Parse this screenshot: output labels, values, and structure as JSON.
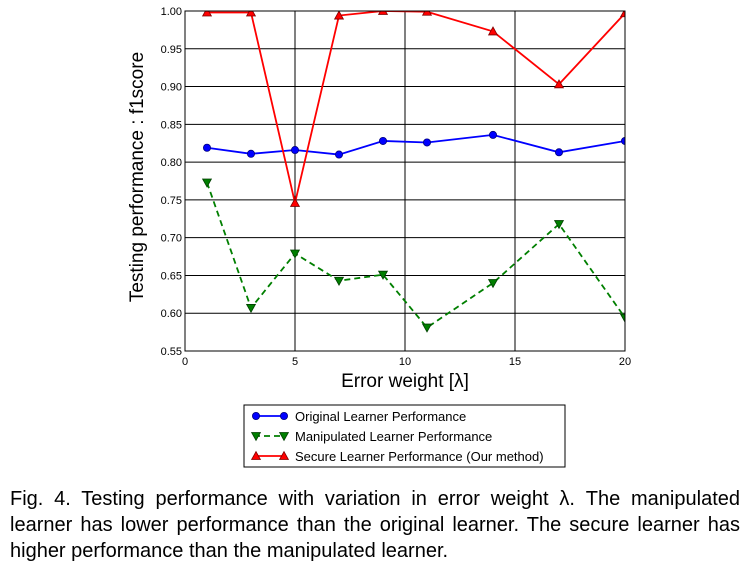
{
  "chart_data": {
    "type": "line",
    "xlabel": "Error weight [λ]",
    "ylabel": "Testing performance : f1score",
    "xlim": [
      0,
      20
    ],
    "ylim": [
      0.55,
      1.0
    ],
    "xticks": [
      "0",
      "5",
      "10",
      "15",
      "20"
    ],
    "yticks": [
      "0.55",
      "0.60",
      "0.65",
      "0.70",
      "0.75",
      "0.80",
      "0.85",
      "0.90",
      "0.95",
      "1.00"
    ],
    "grid": true,
    "legend_position": "below plot",
    "x": [
      1,
      3,
      5,
      7,
      9,
      11,
      14,
      17,
      20
    ],
    "series": [
      {
        "name": "Original Learner Performance",
        "color": "#0000ff",
        "style": "solid",
        "marker": "circle",
        "values": [
          0.819,
          0.811,
          0.816,
          0.81,
          0.828,
          0.826,
          0.836,
          0.813,
          0.828
        ]
      },
      {
        "name": "Manipulated Learner Performance",
        "color": "#007f00",
        "style": "dashed",
        "marker": "triangle-down",
        "values": [
          0.773,
          0.607,
          0.679,
          0.643,
          0.651,
          0.581,
          0.64,
          0.718,
          0.594
        ]
      },
      {
        "name": "Secure Learner Performance (Our method)",
        "color": "#ff0000",
        "style": "solid",
        "marker": "triangle-up",
        "values": [
          0.998,
          0.998,
          0.746,
          0.994,
          1.0,
          0.999,
          0.973,
          0.903,
          0.997
        ]
      }
    ]
  },
  "caption": "Fig. 4. Testing performance with variation in error weight λ. The manipulated learner has lower performance than the original learner. The secure learner has higher performance than the manipulated learner."
}
